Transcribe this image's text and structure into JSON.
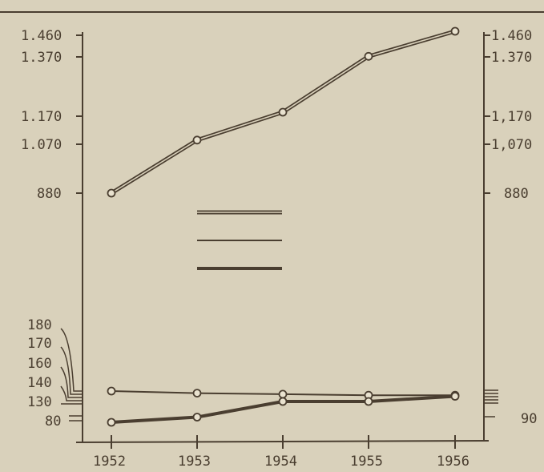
{
  "chart_data": {
    "type": "line",
    "title": "",
    "xlabel": "",
    "ylabel": "",
    "x": [
      "1952",
      "1953",
      "1954",
      "1955",
      "1956"
    ],
    "series": [
      {
        "values": [
          880,
          1070,
          1170,
          1370,
          1460
        ],
        "style": "double-line",
        "axis": "upper"
      },
      {
        "values": [
          140,
          136,
          134,
          132,
          132
        ],
        "style": "thin-line",
        "axis": "lower"
      },
      {
        "values": [
          80,
          90,
          120,
          120,
          130
        ],
        "style": "thick-line",
        "axis": "lower"
      }
    ],
    "left_axis_ticks_upper": [
      "1.460",
      "1.370",
      "1.170",
      "1.070",
      "880"
    ],
    "left_axis_ticks_lower": [
      "180",
      "170",
      "160",
      "140",
      "130",
      "80"
    ],
    "right_axis_ticks_upper": [
      "1.460",
      "1.370",
      "1,170",
      "1,070",
      "880"
    ],
    "right_axis_ticks_lower": [
      "90"
    ],
    "legend_placement": "center",
    "legend_entries": [
      "double-line",
      "thin-line",
      "thick-line"
    ],
    "grid": false,
    "colors": {
      "ink": "#4a3e30",
      "paper": "#d9d1bb",
      "marker_fill": "#e9e2cf"
    }
  }
}
